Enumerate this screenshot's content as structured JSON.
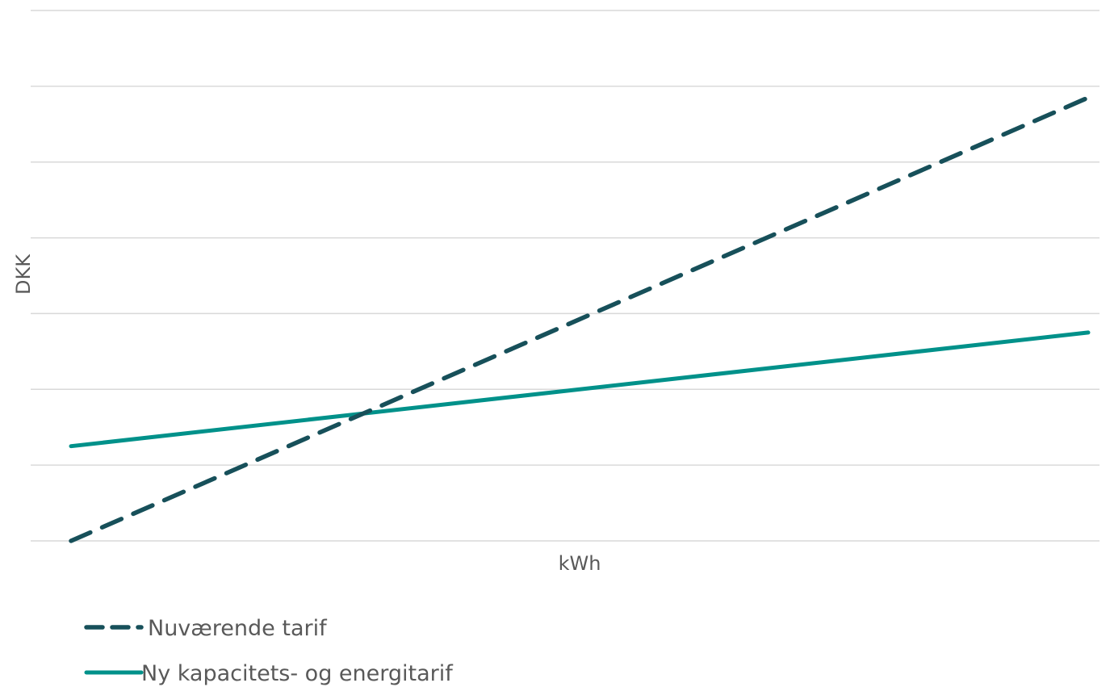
{
  "chart_data": {
    "type": "line",
    "title": "",
    "xlabel": "kWh",
    "ylabel": "DKK",
    "x": [
      0,
      1
    ],
    "ylim": [
      0,
      7
    ],
    "grid": true,
    "legend_position": "bottom-left",
    "series": [
      {
        "name": "Nuværende tarif",
        "values": [
          0,
          5.85
        ],
        "color": "#17505a",
        "style": "dashed"
      },
      {
        "name": "Ny kapacitets- og energitarif",
        "values": [
          1.25,
          2.75
        ],
        "color": "#00918a",
        "style": "solid"
      }
    ]
  }
}
